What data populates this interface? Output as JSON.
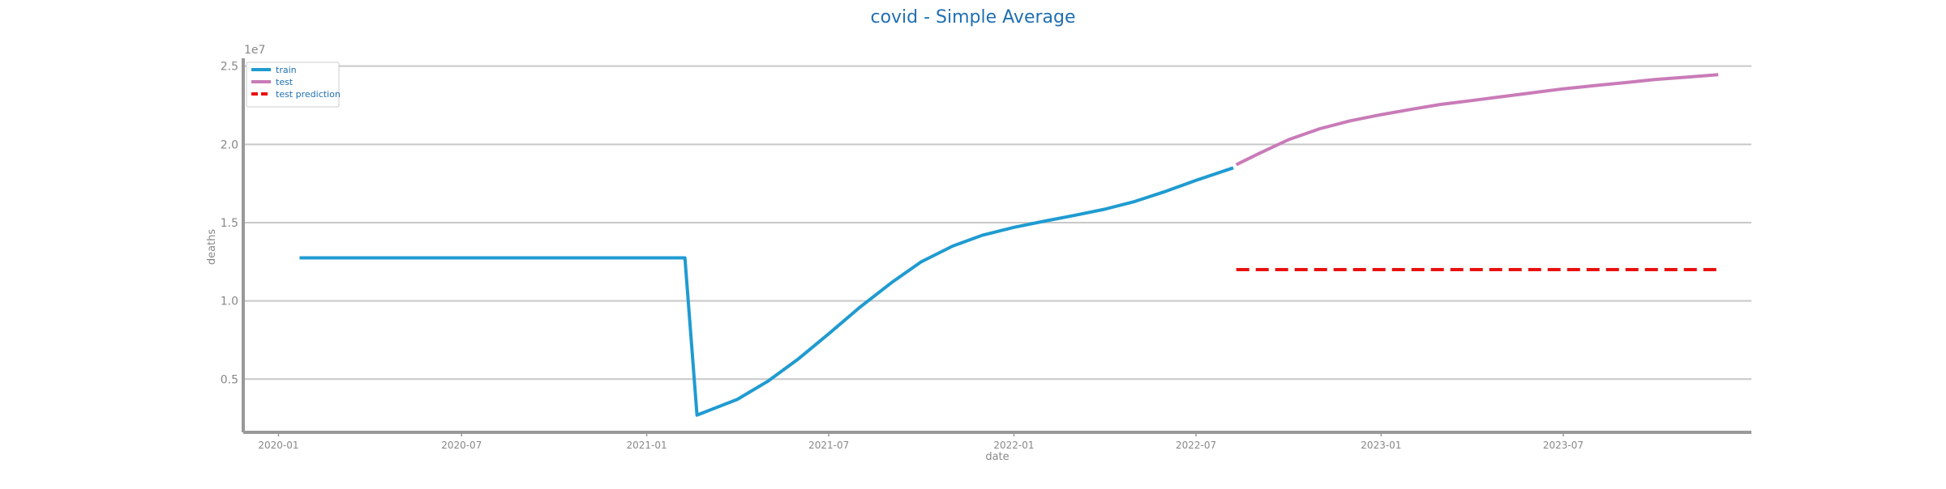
{
  "chart_data": {
    "type": "line",
    "title": "covid - Simple Average",
    "xlabel": "date",
    "ylabel": "deaths",
    "y_offset_label": "1e7",
    "y_scale_factor": 10000000,
    "xlim": [
      "2019-11-27",
      "2024-01-04"
    ],
    "ylim": [
      1600000,
      25500000
    ],
    "x_ticks": [
      "2020-01",
      "2020-07",
      "2021-01",
      "2021-07",
      "2022-01",
      "2022-07",
      "2023-01",
      "2023-07"
    ],
    "y_ticks": [
      0.5,
      1.0,
      1.5,
      2.0,
      2.5
    ],
    "grid": "horizontal",
    "legend_position": "top-left",
    "series": [
      {
        "name": "train",
        "color": "#1f9bd1",
        "style": "solid",
        "points": [
          [
            "2020-01-22",
            12750000
          ],
          [
            "2021-02-08",
            12750000
          ],
          [
            "2021-02-20",
            2700000
          ],
          [
            "2021-04-01",
            3700000
          ],
          [
            "2021-05-01",
            4850000
          ],
          [
            "2021-06-01",
            6300000
          ],
          [
            "2021-07-01",
            7900000
          ],
          [
            "2021-08-01",
            9600000
          ],
          [
            "2021-09-01",
            11150000
          ],
          [
            "2021-10-01",
            12500000
          ],
          [
            "2021-11-01",
            13500000
          ],
          [
            "2021-12-01",
            14200000
          ],
          [
            "2022-01-01",
            14700000
          ],
          [
            "2022-02-01",
            15100000
          ],
          [
            "2022-03-01",
            15450000
          ],
          [
            "2022-04-01",
            15850000
          ],
          [
            "2022-05-01",
            16350000
          ],
          [
            "2022-06-01",
            17000000
          ],
          [
            "2022-07-01",
            17700000
          ],
          [
            "2022-08-07",
            18500000
          ]
        ]
      },
      {
        "name": "test",
        "color": "#c97bb8",
        "style": "solid",
        "points": [
          [
            "2022-08-10",
            18700000
          ],
          [
            "2022-09-01",
            19400000
          ],
          [
            "2022-10-01",
            20300000
          ],
          [
            "2022-11-01",
            21000000
          ],
          [
            "2022-12-01",
            21500000
          ],
          [
            "2023-01-01",
            21900000
          ],
          [
            "2023-02-01",
            22250000
          ],
          [
            "2023-03-01",
            22550000
          ],
          [
            "2023-04-01",
            22800000
          ],
          [
            "2023-05-01",
            23050000
          ],
          [
            "2023-06-01",
            23300000
          ],
          [
            "2023-07-01",
            23550000
          ],
          [
            "2023-08-01",
            23750000
          ],
          [
            "2023-09-01",
            23950000
          ],
          [
            "2023-10-01",
            24150000
          ],
          [
            "2023-11-01",
            24300000
          ],
          [
            "2023-12-02",
            24450000
          ]
        ]
      },
      {
        "name": "test prediction",
        "color": "#e8110f",
        "style": "dashed",
        "points": [
          [
            "2022-08-10",
            12000000
          ],
          [
            "2023-12-02",
            12000000
          ]
        ]
      }
    ]
  }
}
